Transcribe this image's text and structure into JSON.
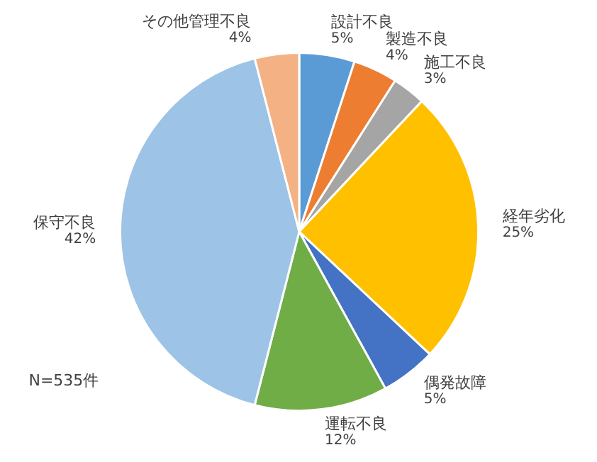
{
  "chart_data": {
    "type": "pie",
    "categories": [
      "設計不良",
      "製造不良",
      "施工不良",
      "経年劣化",
      "偶発故障",
      "運転不良",
      "保守不良",
      "その他管理不良"
    ],
    "values": [
      5,
      4,
      3,
      25,
      5,
      12,
      42,
      4
    ],
    "colors": [
      "#5b9bd5",
      "#ed7d31",
      "#a5a5a5",
      "#ffc000",
      "#4472c4",
      "#70ad47",
      "#9dc3e6",
      "#f4b183"
    ],
    "value_labels": [
      "5%",
      "4%",
      "3%",
      "25%",
      "5%",
      "12%",
      "42%",
      "4%"
    ],
    "annotations": [
      "N=535件"
    ]
  }
}
